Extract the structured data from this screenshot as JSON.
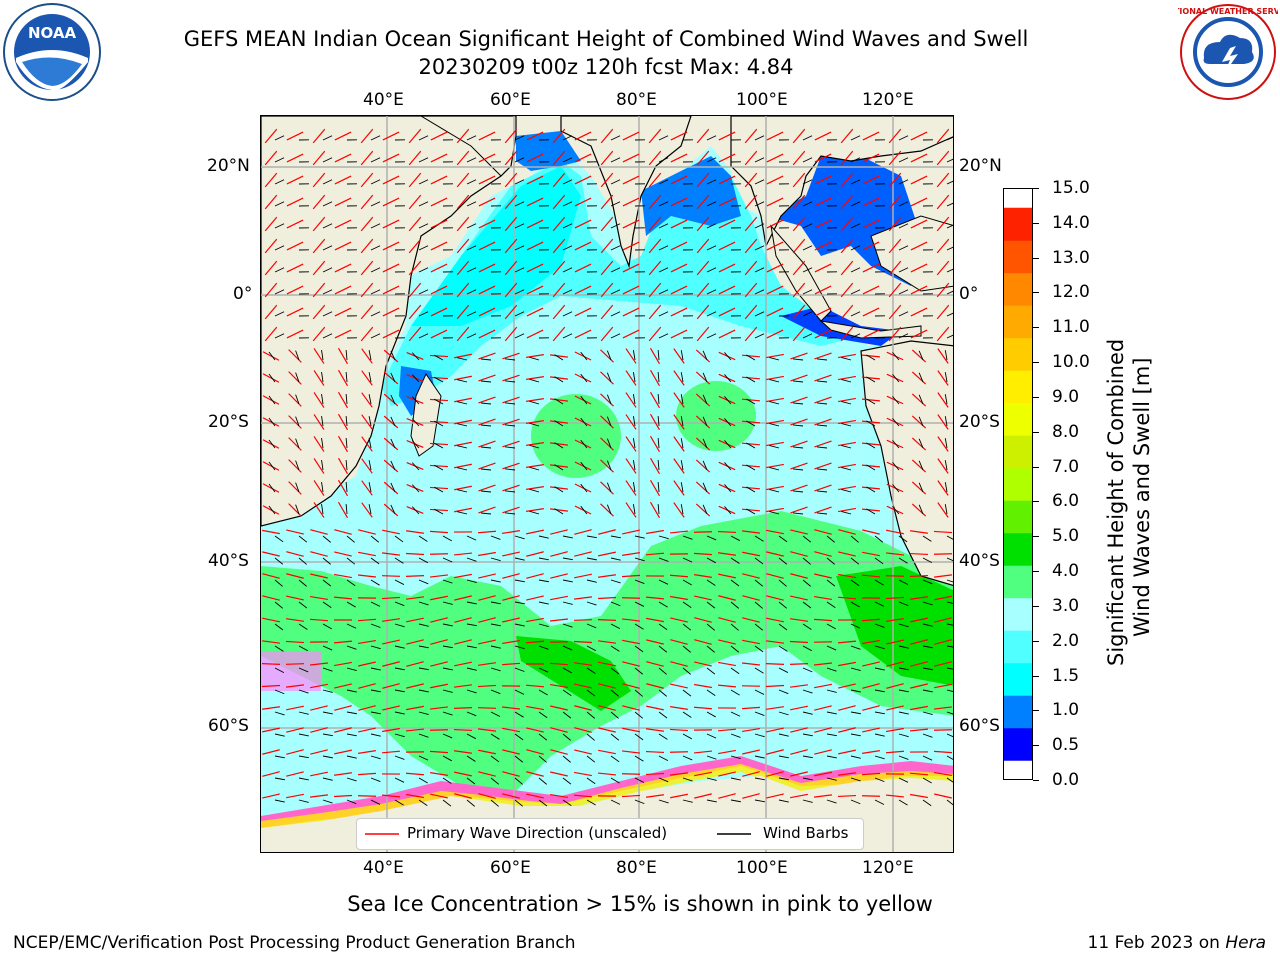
{
  "header": {
    "title_line1": "GEFS MEAN Indian Ocean Significant Height of Combined Wind Waves and Swell",
    "title_line2": "20230209 t00z 120h fcst   Max: 4.84"
  },
  "logos": {
    "left": {
      "name": "noaa-logo",
      "text": "NOAA"
    },
    "right": {
      "name": "nws-logo",
      "text": "NATIONAL WEATHER SERVICE"
    }
  },
  "axes": {
    "lon_ticks": [
      "40°E",
      "60°E",
      "80°E",
      "100°E",
      "120°E"
    ],
    "lat_ticks": [
      "20°N",
      "0°",
      "20°S",
      "40°S",
      "60°S"
    ]
  },
  "map": {
    "land_color": "#f0eedc",
    "regions": "Indian Ocean, 20°E–130°E, 70°S–28°N"
  },
  "colorbar": {
    "label_line1": "Significant Height of Combined",
    "label_line2": "Wind Waves and Swell [m]",
    "ticks": [
      "0.0",
      "0.5",
      "1.0",
      "1.5",
      "2.0",
      "3.0",
      "4.0",
      "5.0",
      "6.0",
      "7.0",
      "8.0",
      "9.0",
      "10.0",
      "11.0",
      "12.0",
      "13.0",
      "14.0",
      "15.0"
    ],
    "colors": [
      "#0000ff",
      "#0080ff",
      "#00ffff",
      "#50ffff",
      "#a8ffff",
      "#50ff80",
      "#00e000",
      "#60f000",
      "#b0ff00",
      "#ccf000",
      "#eeff00",
      "#ffee00",
      "#ffcc00",
      "#ffaa00",
      "#ff8800",
      "#ff5500",
      "#ff2200"
    ]
  },
  "legend": {
    "items": [
      {
        "label": "Primary Wave Direction (unscaled)",
        "color": "#ff0000"
      },
      {
        "label": "Wind Barbs",
        "color": "#000000"
      }
    ]
  },
  "footer": {
    "note": "Sea Ice Concentration > 15% is shown in pink to yellow",
    "credit": "NCEP/EMC/Verification Post Processing Product Generation Branch",
    "date": "11 Feb 2023 on",
    "host": "Hera"
  }
}
